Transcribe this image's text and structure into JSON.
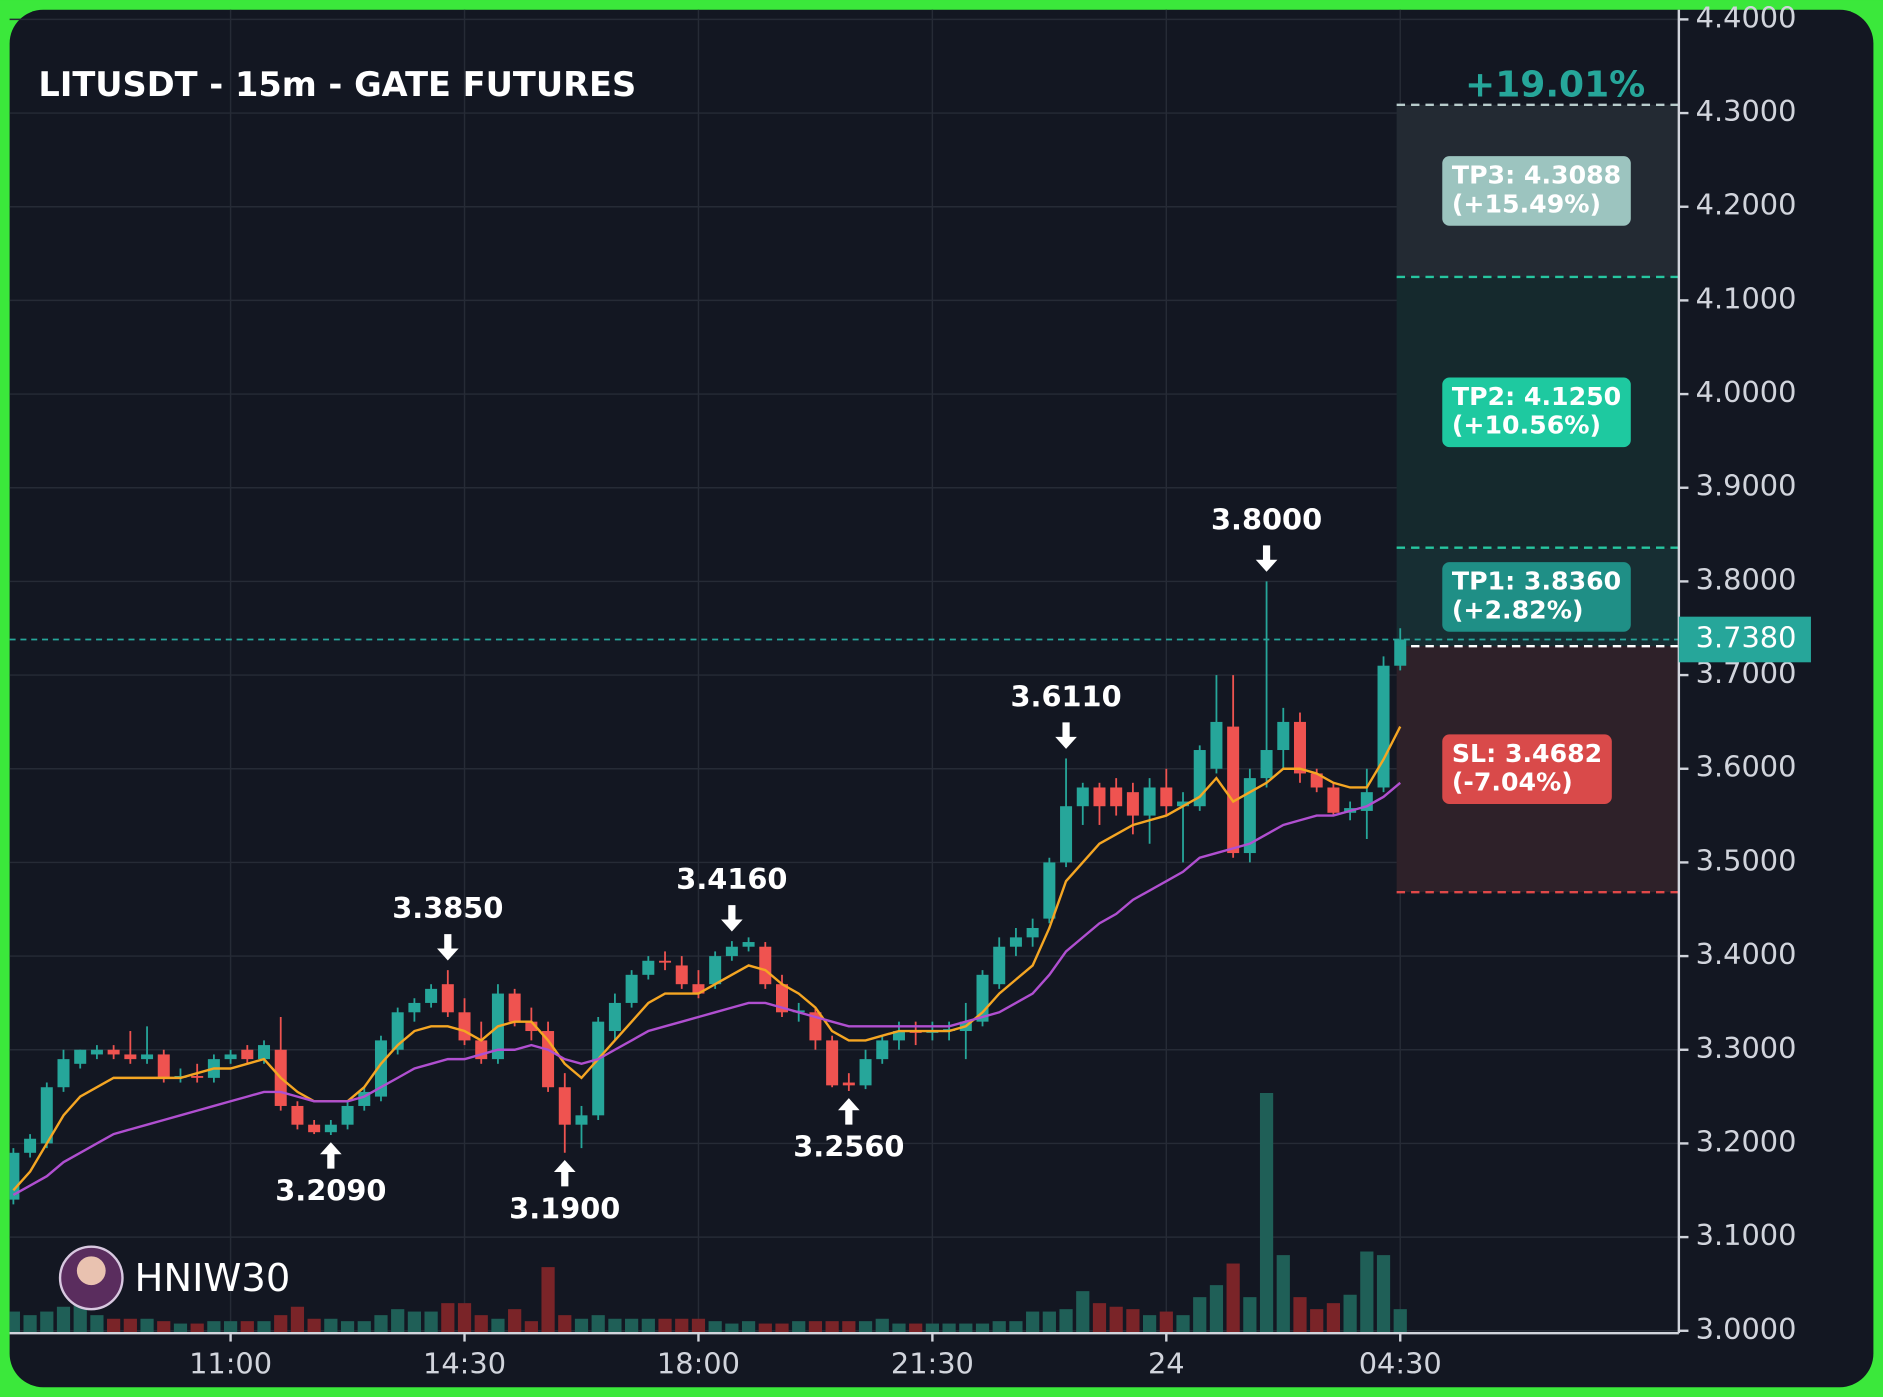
{
  "chart_data": {
    "type": "candlestick",
    "title": "LITUSDT - 15m - GATE FUTURES",
    "watermark": "HNIW30",
    "x": [
      null,
      null,
      null,
      null,
      null,
      null,
      null,
      null,
      null,
      null,
      null,
      null,
      null,
      "11:00",
      null,
      null,
      null,
      null,
      null,
      null,
      null,
      null,
      null,
      null,
      null,
      null,
      null,
      "14:30",
      null,
      null,
      null,
      null,
      null,
      null,
      null,
      null,
      null,
      null,
      null,
      null,
      null,
      "18:00",
      null,
      null,
      null,
      null,
      null,
      null,
      null,
      null,
      null,
      null,
      null,
      null,
      null,
      "21:30",
      null,
      null,
      null,
      null,
      null,
      null,
      null,
      null,
      null,
      null,
      null,
      null,
      null,
      "24",
      null,
      null,
      null,
      null,
      null,
      null,
      null,
      null,
      null,
      null,
      null,
      null,
      null,
      "04:30"
    ],
    "open": [
      3.14,
      3.19,
      3.2,
      3.26,
      3.285,
      3.295,
      3.3,
      3.295,
      3.29,
      3.295,
      3.27,
      3.272,
      3.27,
      3.29,
      3.3,
      3.29,
      3.3,
      3.24,
      3.22,
      3.212,
      3.22,
      3.24,
      3.25,
      3.3,
      3.34,
      3.35,
      3.37,
      3.34,
      3.31,
      3.29,
      3.36,
      3.33,
      3.32,
      3.26,
      3.22,
      3.23,
      3.32,
      3.35,
      3.38,
      3.395,
      3.39,
      3.37,
      3.37,
      3.4,
      3.41,
      3.41,
      3.37,
      3.34,
      3.34,
      3.31,
      3.265,
      3.262,
      3.29,
      3.31,
      3.32,
      3.318,
      3.32,
      3.32,
      3.33,
      3.37,
      3.41,
      3.42,
      3.44,
      3.5,
      3.56,
      3.58,
      3.58,
      3.575,
      3.55,
      3.58,
      3.56,
      3.56,
      3.6,
      3.645,
      3.51,
      3.59,
      3.62,
      3.65,
      3.595,
      3.58,
      3.553,
      3.555,
      3.58,
      3.71
    ],
    "high": [
      3.195,
      3.21,
      3.265,
      3.3,
      3.3,
      3.305,
      3.305,
      3.32,
      3.325,
      3.3,
      3.28,
      3.285,
      3.295,
      3.3,
      3.305,
      3.31,
      3.335,
      3.245,
      3.225,
      3.225,
      3.245,
      3.26,
      3.315,
      3.345,
      3.355,
      3.37,
      3.385,
      3.355,
      3.33,
      3.37,
      3.365,
      3.345,
      3.33,
      3.275,
      3.24,
      3.335,
      3.36,
      3.385,
      3.4,
      3.405,
      3.4,
      3.385,
      3.405,
      3.416,
      3.42,
      3.415,
      3.38,
      3.35,
      3.345,
      3.315,
      3.275,
      3.3,
      3.315,
      3.33,
      3.33,
      3.33,
      3.33,
      3.35,
      3.385,
      3.42,
      3.43,
      3.44,
      3.505,
      3.611,
      3.585,
      3.585,
      3.59,
      3.585,
      3.59,
      3.6,
      3.575,
      3.625,
      3.7,
      3.7,
      3.6,
      3.8,
      3.665,
      3.66,
      3.6,
      3.585,
      3.565,
      3.6,
      3.72,
      3.75
    ],
    "low": [
      3.135,
      3.185,
      3.195,
      3.255,
      3.28,
      3.29,
      3.29,
      3.285,
      3.285,
      3.265,
      3.265,
      3.265,
      3.265,
      3.285,
      3.285,
      3.285,
      3.235,
      3.215,
      3.21,
      3.209,
      3.215,
      3.235,
      3.245,
      3.295,
      3.33,
      3.345,
      3.335,
      3.305,
      3.285,
      3.285,
      3.325,
      3.31,
      3.255,
      3.19,
      3.195,
      3.225,
      3.31,
      3.345,
      3.375,
      3.385,
      3.365,
      3.355,
      3.365,
      3.395,
      3.405,
      3.365,
      3.335,
      3.33,
      3.3,
      3.26,
      3.256,
      3.258,
      3.285,
      3.3,
      3.305,
      3.31,
      3.31,
      3.29,
      3.325,
      3.365,
      3.4,
      3.41,
      3.435,
      3.495,
      3.54,
      3.54,
      3.55,
      3.53,
      3.52,
      3.55,
      3.5,
      3.555,
      3.595,
      3.505,
      3.5,
      3.58,
      3.6,
      3.585,
      3.575,
      3.55,
      3.545,
      3.525,
      3.575,
      3.705
    ],
    "close": [
      3.19,
      3.205,
      3.26,
      3.29,
      3.3,
      3.3,
      3.295,
      3.29,
      3.295,
      3.27,
      3.272,
      3.27,
      3.29,
      3.295,
      3.29,
      3.305,
      3.24,
      3.22,
      3.212,
      3.22,
      3.24,
      3.255,
      3.31,
      3.34,
      3.35,
      3.365,
      3.34,
      3.31,
      3.29,
      3.36,
      3.33,
      3.32,
      3.26,
      3.22,
      3.23,
      3.33,
      3.35,
      3.38,
      3.395,
      3.393,
      3.37,
      3.36,
      3.4,
      3.41,
      3.415,
      3.37,
      3.34,
      3.342,
      3.31,
      3.262,
      3.262,
      3.29,
      3.31,
      3.32,
      3.318,
      3.32,
      3.322,
      3.33,
      3.38,
      3.41,
      3.42,
      3.43,
      3.5,
      3.56,
      3.58,
      3.56,
      3.56,
      3.55,
      3.58,
      3.56,
      3.565,
      3.62,
      3.65,
      3.51,
      3.59,
      3.62,
      3.65,
      3.595,
      3.58,
      3.553,
      3.558,
      3.575,
      3.71,
      3.738
    ],
    "up_color": "#26a69a",
    "down_color": "#ef5350",
    "ylim": [
      3.0,
      4.4
    ],
    "yticks": [
      {
        "value": 3.0,
        "label": "3.0000"
      },
      {
        "value": 3.1,
        "label": "3.1000"
      },
      {
        "value": 3.2,
        "label": "3.2000"
      },
      {
        "value": 3.3,
        "label": "3.3000"
      },
      {
        "value": 3.4,
        "label": "3.4000"
      },
      {
        "value": 3.5,
        "label": "3.5000"
      },
      {
        "value": 3.6,
        "label": "3.6000"
      },
      {
        "value": 3.7,
        "label": "3.7000"
      },
      {
        "value": 3.8,
        "label": "3.8000"
      },
      {
        "value": 3.9,
        "label": "3.9000"
      },
      {
        "value": 4.0,
        "label": "4.0000"
      },
      {
        "value": 4.1,
        "label": "4.1000"
      },
      {
        "value": 4.2,
        "label": "4.2000"
      },
      {
        "value": 4.3,
        "label": "4.3000"
      },
      {
        "value": 4.4,
        "label": "4.4000"
      }
    ],
    "grid": true,
    "last_price": {
      "value": 3.738,
      "label": "3.7380",
      "color": "#26a69a"
    },
    "moving_averages": [
      {
        "color": "#f5a623",
        "values": [
          3.15,
          3.17,
          3.2,
          3.23,
          3.25,
          3.26,
          3.27,
          3.27,
          3.27,
          3.27,
          3.27,
          3.275,
          3.28,
          3.28,
          3.285,
          3.29,
          3.27,
          3.255,
          3.245,
          3.245,
          3.245,
          3.26,
          3.285,
          3.305,
          3.32,
          3.325,
          3.325,
          3.32,
          3.31,
          3.325,
          3.33,
          3.33,
          3.31,
          3.285,
          3.27,
          3.29,
          3.31,
          3.33,
          3.35,
          3.36,
          3.36,
          3.36,
          3.37,
          3.38,
          3.39,
          3.385,
          3.37,
          3.36,
          3.345,
          3.32,
          3.31,
          3.31,
          3.315,
          3.32,
          3.32,
          3.32,
          3.32,
          3.325,
          3.34,
          3.36,
          3.375,
          3.39,
          3.43,
          3.48,
          3.5,
          3.52,
          3.53,
          3.54,
          3.545,
          3.55,
          3.56,
          3.57,
          3.59,
          3.565,
          3.575,
          3.585,
          3.6,
          3.6,
          3.595,
          3.585,
          3.58,
          3.58,
          3.61,
          3.645
        ]
      },
      {
        "color": "#b04fd0",
        "values": [
          3.145,
          3.155,
          3.165,
          3.18,
          3.19,
          3.2,
          3.21,
          3.215,
          3.22,
          3.225,
          3.23,
          3.235,
          3.24,
          3.245,
          3.25,
          3.255,
          3.255,
          3.25,
          3.245,
          3.245,
          3.245,
          3.25,
          3.26,
          3.27,
          3.28,
          3.285,
          3.29,
          3.29,
          3.295,
          3.3,
          3.3,
          3.305,
          3.3,
          3.29,
          3.285,
          3.29,
          3.3,
          3.31,
          3.32,
          3.325,
          3.33,
          3.335,
          3.34,
          3.345,
          3.35,
          3.35,
          3.345,
          3.34,
          3.335,
          3.33,
          3.325,
          3.325,
          3.325,
          3.325,
          3.325,
          3.325,
          3.325,
          3.33,
          3.335,
          3.34,
          3.35,
          3.36,
          3.38,
          3.405,
          3.42,
          3.435,
          3.445,
          3.46,
          3.47,
          3.48,
          3.49,
          3.505,
          3.51,
          3.515,
          3.52,
          3.53,
          3.54,
          3.545,
          3.55,
          3.55,
          3.555,
          3.56,
          3.57,
          3.585
        ]
      }
    ],
    "volume": {
      "ylim": [
        0,
        1092
      ],
      "up_color": "#1f5f57",
      "down_color": "#7a2428",
      "values": [
        18,
        15,
        18,
        22,
        25,
        15,
        12,
        12,
        12,
        10,
        8,
        8,
        10,
        10,
        10,
        10,
        15,
        22,
        12,
        12,
        10,
        10,
        15,
        20,
        18,
        18,
        25,
        25,
        15,
        12,
        20,
        10,
        55,
        15,
        12,
        15,
        12,
        12,
        12,
        12,
        12,
        12,
        10,
        8,
        10,
        8,
        8,
        10,
        10,
        10,
        10,
        10,
        12,
        8,
        8,
        8,
        8,
        8,
        8,
        10,
        10,
        18,
        18,
        20,
        35,
        25,
        22,
        20,
        15,
        18,
        15,
        30,
        40,
        58,
        30,
        200,
        65,
        30,
        20,
        25,
        32,
        68,
        65,
        20
      ]
    },
    "annotations": [
      {
        "value": 3.385,
        "label": "3.3850"
      },
      {
        "value": 3.416,
        "label": "3.4160"
      },
      {
        "value": 3.611,
        "label": "3.6110"
      },
      {
        "value": 3.8,
        "label": "3.8000"
      },
      {
        "value": 3.209,
        "label": "3.2090"
      },
      {
        "value": 3.19,
        "label": "3.1900"
      },
      {
        "value": 3.256,
        "label": "3.2560"
      }
    ],
    "position": {
      "entry": 3.7308,
      "gain": "+19.01%",
      "targets": [
        {
          "value": 4.3088,
          "label": "TP3: 4.3088",
          "pct": "(+15.49%)",
          "box_color": "#9cc4bf",
          "band_color": "#232a33",
          "line_color": "#b8cccc"
        },
        {
          "value": 4.125,
          "label": "TP2: 4.1250",
          "pct": "(+10.56%)",
          "box_color": "#1ec9a0",
          "band_color": "#15292d",
          "line_color": "#26c6a0"
        },
        {
          "value": 3.836,
          "label": "TP1: 3.8360",
          "pct": "(+2.82%)",
          "box_color": "#1f8f86",
          "band_color": "#172e33",
          "line_color": "#26c6a0"
        }
      ],
      "stop": {
        "value": 3.4682,
        "label": "SL: 3.4682",
        "pct": "(-7.04%)",
        "box_color": "#d94a4a",
        "band_color": "#2e2129",
        "line_color": "#e04848"
      }
    }
  }
}
